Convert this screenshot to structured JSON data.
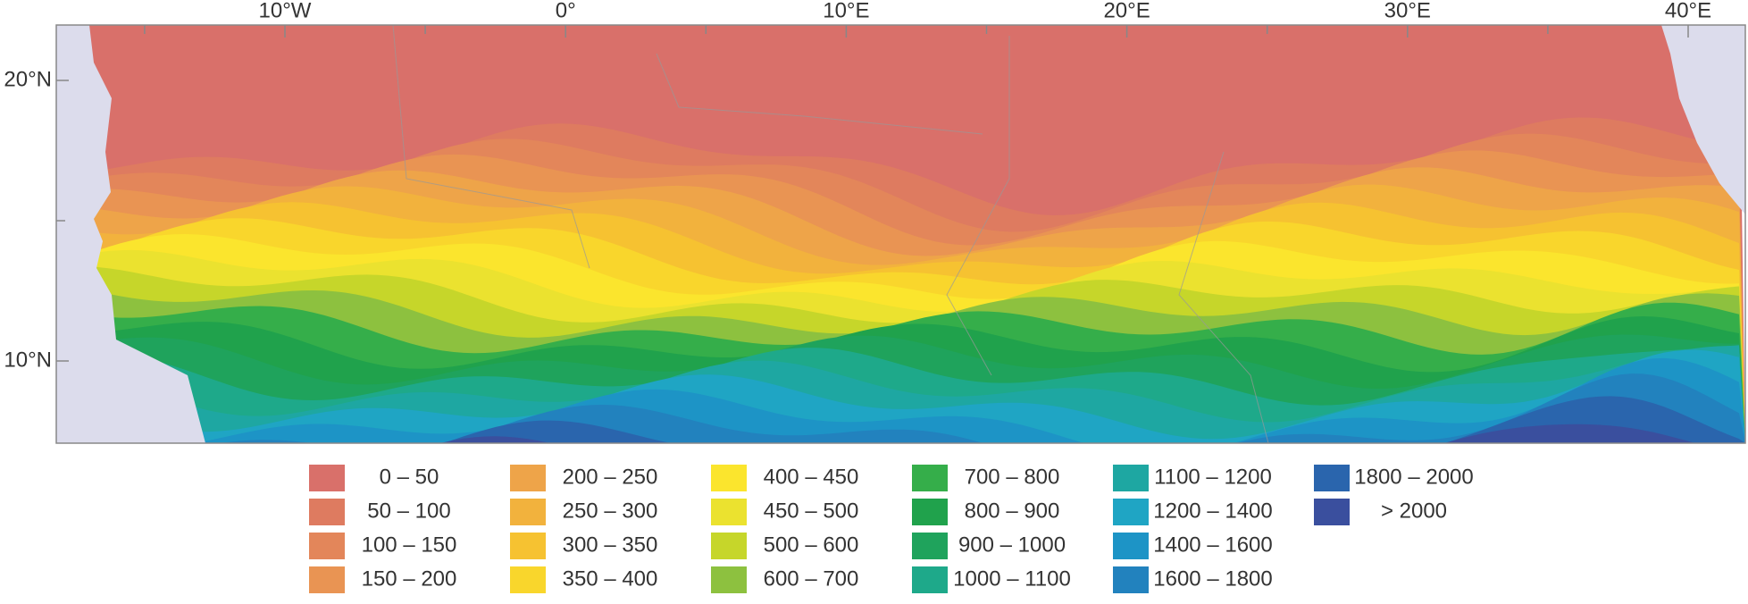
{
  "map": {
    "lon_labels": [
      "10°W",
      "0°",
      "10°E",
      "20°E",
      "30°E",
      "40°E"
    ],
    "lat_labels": [
      "20°N",
      "10°N"
    ],
    "legend": [
      {
        "label": "0 – 50",
        "color": "#d9706a"
      },
      {
        "label": "50 – 100",
        "color": "#de7b60"
      },
      {
        "label": "100 – 150",
        "color": "#e3865a"
      },
      {
        "label": "150 – 200",
        "color": "#e99453"
      },
      {
        "label": "200 – 250",
        "color": "#eea449"
      },
      {
        "label": "250 – 300",
        "color": "#f2b23d"
      },
      {
        "label": "300 – 350",
        "color": "#f6c231"
      },
      {
        "label": "350 – 400",
        "color": "#f9d62c"
      },
      {
        "label": "400 – 450",
        "color": "#fbe52d"
      },
      {
        "label": "450 – 500",
        "color": "#ebe22f"
      },
      {
        "label": "500 – 600",
        "color": "#c6d62a"
      },
      {
        "label": "600 – 700",
        "color": "#8dc13f"
      },
      {
        "label": "700 – 800",
        "color": "#35ae4a"
      },
      {
        "label": "800 – 900",
        "color": "#20a24c"
      },
      {
        "label": "900 – 1000",
        "color": "#1fa35c"
      },
      {
        "label": "1000 – 1100",
        "color": "#1ea98a"
      },
      {
        "label": "1100 – 1200",
        "color": "#1ea7a2"
      },
      {
        "label": "1200 – 1400",
        "color": "#1fa5c4"
      },
      {
        "label": "1400 – 1600",
        "color": "#1d94c6"
      },
      {
        "label": "1600 – 1800",
        "color": "#2282be"
      },
      {
        "label": "1800 – 2000",
        "color": "#2a65ad"
      },
      {
        "label": "> 2000",
        "color": "#3a4f9e"
      }
    ]
  }
}
